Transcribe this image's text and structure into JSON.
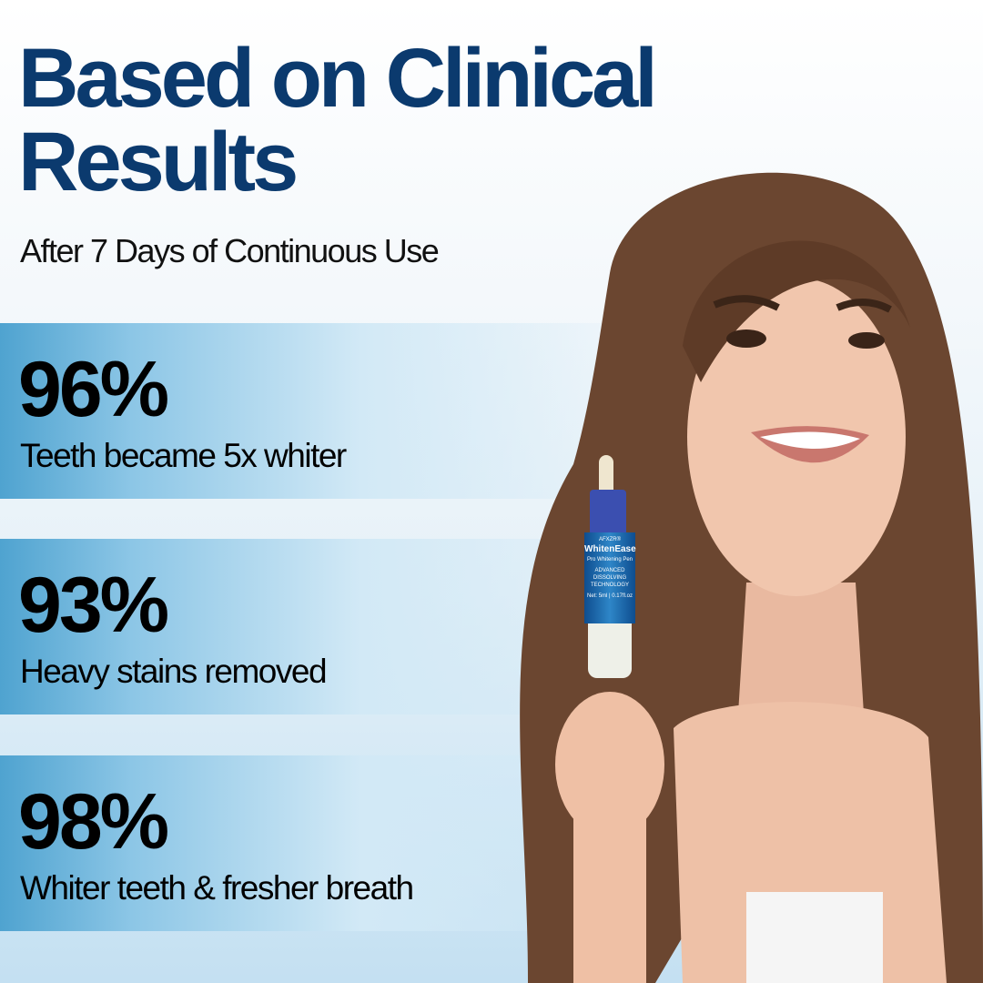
{
  "headline": "Based on Clinical Results",
  "subtitle": "After 7 Days of Continuous Use",
  "stats": [
    {
      "value": "96%",
      "label": "Teeth became 5x whiter"
    },
    {
      "value": "93%",
      "label": "Heavy stains removed"
    },
    {
      "value": "98%",
      "label": "Whiter teeth & fresher breath"
    }
  ],
  "product": {
    "brand": "AFXZR®",
    "name": "WhitenEase",
    "type": "Pro Whitening Pen",
    "tagline": "ADVANCED DISSOLVING TECHNOLOGY",
    "net": "Net: 5ml | 0.17fl.oz"
  },
  "colors": {
    "headline": "#0b3a6e",
    "band": "#4fa3d0"
  }
}
